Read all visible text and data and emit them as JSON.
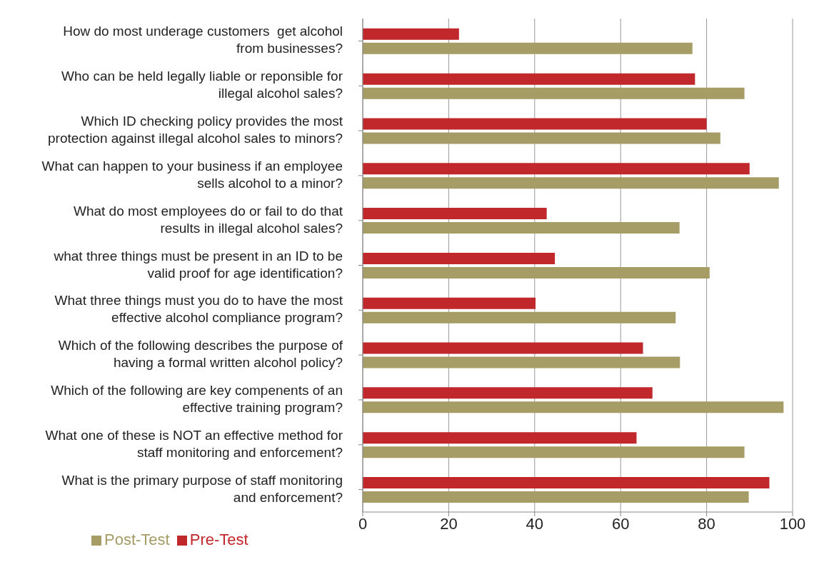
{
  "chart_data": {
    "type": "bar",
    "orientation": "horizontal",
    "categories": [
      "How do most underage customers  get alcohol\nfrom businesses?",
      "Who can be held legally liable or reponsible for\nillegal alcohol sales?",
      "Which ID checking policy provides the most\nprotection against illegal alcohol sales to minors?",
      "What can happen to your business if an employee\nsells alcohol to a minor?",
      "What do most employees do or fail to do that\nresults in illegal alcohol sales?",
      "what three things must be present in an ID to be\nvalid proof for age identification?",
      "What three things must you do to have the most\neffective alcohol compliance program?",
      "Which of the following describes the purpose of\nhaving a formal written alcohol policy?",
      "Which of the following are key compenents of an\neffective training program?",
      "What one of these is NOT an effective method for\nstaff monitoring and enforcement?",
      "What is the primary purpose of staff monitoring\nand enforcement?"
    ],
    "series": [
      {
        "name": "Pre-Test",
        "color": "#c0282c",
        "values": [
          22.4,
          77.3,
          80.0,
          90.0,
          42.8,
          44.7,
          40.2,
          65.2,
          67.4,
          63.7,
          94.6
        ]
      },
      {
        "name": "Post-Test",
        "color": "#a69c66",
        "values": [
          76.7,
          88.8,
          83.2,
          96.8,
          73.7,
          80.7,
          72.8,
          73.8,
          97.9,
          88.8,
          89.8
        ]
      }
    ],
    "xlim": [
      0,
      100
    ],
    "xticks": [
      0,
      20,
      40,
      60,
      80,
      100
    ],
    "grid": "x",
    "legend": "bottom left"
  }
}
